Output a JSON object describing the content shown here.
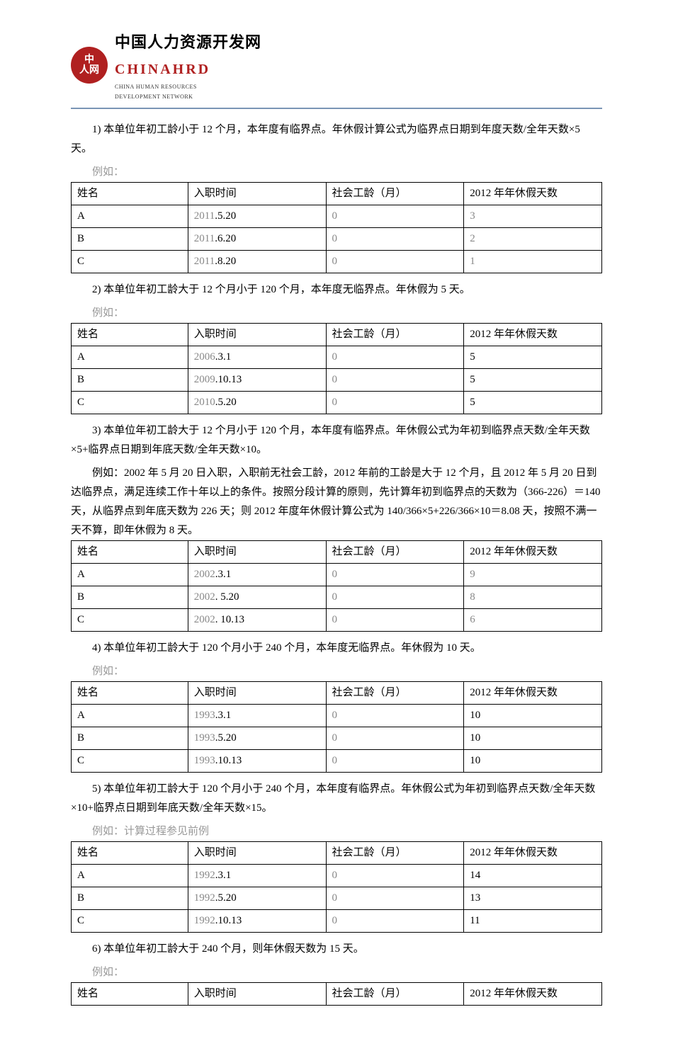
{
  "logo": {
    "circle_top": "中",
    "circle_bottom": "人网",
    "cn": "中国人力资源开发网",
    "en": "CHINAHRD",
    "sub1": "CHINA HUMAN RESOURCES",
    "sub2": "DEVELOPMENT NETWORK"
  },
  "sections": [
    {
      "paras": [
        "1) 本单位年初工龄小于 12 个月，本年度有临界点。年休假计算公式为临界点日期到年度天数/全年天数×5 天。"
      ],
      "example_label": "例如：",
      "table": {
        "headers": [
          "姓名",
          "入职时间",
          "社会工龄（月）",
          "2012 年年休假天数"
        ],
        "rows": [
          [
            "A",
            "2011.5.20",
            "0",
            "3"
          ],
          [
            "B",
            "2011.6.20",
            "0",
            "2"
          ],
          [
            "C",
            "2011.8.20",
            "0",
            "1"
          ]
        ],
        "date_gray_prefix": "2011"
      }
    },
    {
      "paras": [
        "2) 本单位年初工龄大于 12 个月小于 120 个月，本年度无临界点。年休假为 5 天。"
      ],
      "example_label": "例如：",
      "table": {
        "headers": [
          "姓名",
          "入职时间",
          "社会工龄（月）",
          "2012 年年休假天数"
        ],
        "rows": [
          [
            "A",
            "2006.3.1",
            "0",
            "5"
          ],
          [
            "B",
            "2009.10.13",
            "0",
            "5"
          ],
          [
            "C",
            "2010.5.20",
            "0",
            "5"
          ]
        ],
        "date_gray_prefix_rows": [
          "2006",
          "2009",
          "2010"
        ]
      }
    },
    {
      "paras": [
        "3) 本单位年初工龄大于 12 个月小于 120 个月，本年度有临界点。年休假公式为年初到临界点天数/全年天数×5+临界点日期到年底天数/全年天数×10。",
        "例如：2002 年 5 月 20 日入职，入职前无社会工龄，2012 年前的工龄是大于 12 个月，且 2012 年 5 月 20 日到达临界点，满足连续工作十年以上的条件。按照分段计算的原则，先计算年初到临界点的天数为（366-226）＝140 天，从临界点到年底天数为 226 天；则 2012 年度年休假计算公式为 140/366×5+226/366×10＝8.08 天，按照不满一天不算，即年休假为 8 天。"
      ],
      "table": {
        "headers": [
          "姓名",
          "入职时间",
          "社会工龄（月）",
          "2012 年年休假天数"
        ],
        "rows": [
          [
            "A",
            "2002.3.1",
            "0",
            "9"
          ],
          [
            "B",
            "2002. 5.20",
            "0",
            "8"
          ],
          [
            "C",
            "2002. 10.13",
            "0",
            "6"
          ]
        ],
        "date_gray_prefix": "2002"
      }
    },
    {
      "paras": [
        "4) 本单位年初工龄大于 120 个月小于 240 个月，本年度无临界点。年休假为 10 天。"
      ],
      "example_label": "例如：",
      "table": {
        "headers": [
          "姓名",
          "入职时间",
          "社会工龄（月）",
          "2012 年年休假天数"
        ],
        "rows": [
          [
            "A",
            "1993.3.1",
            "0",
            "10"
          ],
          [
            "B",
            "1993.5.20",
            "0",
            "10"
          ],
          [
            "C",
            "1993.10.13",
            "0",
            "10"
          ]
        ],
        "date_gray_prefix": "1993"
      }
    },
    {
      "paras": [
        "5) 本单位年初工龄大于 120 个月小于 240 个月，本年度有临界点。年休假公式为年初到临界点天数/全年天数×10+临界点日期到年底天数/全年天数×15。"
      ],
      "example_label": "例如：计算过程参见前例",
      "table": {
        "headers": [
          "姓名",
          "入职时间",
          "社会工龄（月）",
          "2012 年年休假天数"
        ],
        "rows": [
          [
            "A",
            "1992.3.1",
            "0",
            "14"
          ],
          [
            "B",
            "1992.5.20",
            "0",
            "13"
          ],
          [
            "C",
            "1992.10.13",
            "0",
            "11"
          ]
        ],
        "date_gray_prefix": "1992"
      }
    },
    {
      "paras": [
        "6) 本单位年初工龄大于 240 个月，则年休假天数为 15 天。"
      ],
      "example_label": "例如：",
      "table": {
        "headers": [
          "姓名",
          "入职时间",
          "社会工龄（月）",
          "2012 年年休假天数"
        ],
        "rows": []
      }
    }
  ]
}
